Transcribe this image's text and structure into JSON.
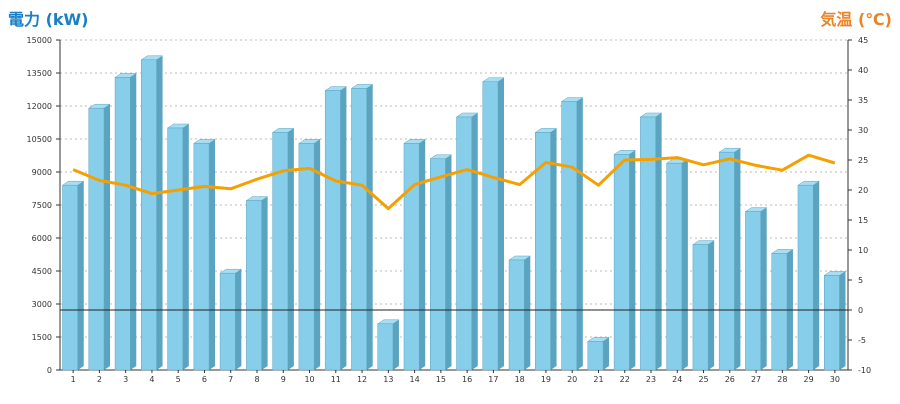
{
  "chart_data": {
    "type": "bar",
    "left_axis_label": "電力 (kW)",
    "right_axis_label": "気温 (℃)",
    "categories": [
      "1",
      "2",
      "3",
      "4",
      "5",
      "6",
      "7",
      "8",
      "9",
      "10",
      "11",
      "12",
      "13",
      "14",
      "15",
      "16",
      "17",
      "18",
      "19",
      "20",
      "21",
      "22",
      "23",
      "24",
      "25",
      "26",
      "27",
      "28",
      "29",
      "30"
    ],
    "y_left_ticks": [
      0,
      1500,
      3000,
      4500,
      6000,
      7500,
      9000,
      10500,
      12000,
      13500,
      15000
    ],
    "y_right_ticks": [
      -10,
      -5,
      0,
      5,
      10,
      15,
      20,
      25,
      30,
      35,
      40,
      45
    ],
    "y_left_lim": [
      0,
      15000
    ],
    "y_right_lim": [
      -10,
      45
    ],
    "grid": true,
    "series": [
      {
        "name": "電力 (kW)",
        "type": "bar",
        "axis": "left",
        "color": "#87CEEB",
        "values": [
          8400,
          11900,
          13300,
          14100,
          11000,
          10300,
          4400,
          7700,
          10800,
          10300,
          12700,
          12800,
          2100,
          10300,
          9600,
          11500,
          13100,
          5000,
          10800,
          12200,
          1300,
          9800,
          11500,
          9400,
          5700,
          9900,
          7200,
          5300,
          8400,
          4300
        ]
      },
      {
        "name": "気温 (℃)",
        "type": "line",
        "axis": "right",
        "color": "#F5A000",
        "values": [
          23.4,
          21.6,
          20.8,
          19.4,
          20.0,
          20.6,
          20.2,
          21.8,
          23.2,
          23.6,
          21.5,
          20.8,
          16.9,
          20.9,
          22.2,
          23.4,
          22.1,
          20.9,
          24.6,
          23.8,
          20.8,
          25.0,
          25.1,
          25.4,
          24.2,
          25.2,
          24.1,
          23.3,
          25.8,
          24.5
        ]
      }
    ],
    "colors": {
      "left_axis": "#1a7fc6",
      "right_axis": "#e8852a",
      "bar_front": "#87CEEB",
      "bar_side": "#5AA4C0",
      "bar_top": "#A8DEF3",
      "line": "#F5A000",
      "grid": "#bbbbbb"
    }
  }
}
